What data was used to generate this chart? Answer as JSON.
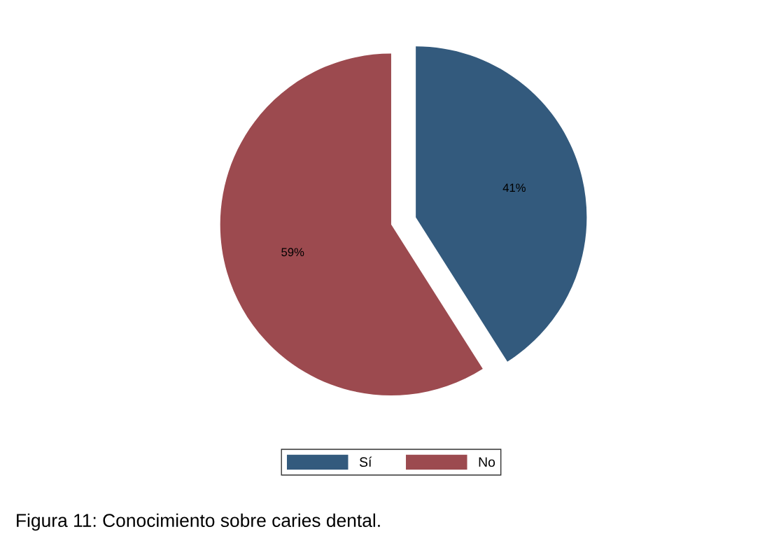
{
  "chart_data": {
    "type": "pie",
    "categories": [
      "Sí",
      "No"
    ],
    "values": [
      41,
      59
    ],
    "colors": [
      "#335a7d",
      "#9c4a4f"
    ],
    "value_labels": [
      "41%",
      "59%"
    ],
    "legend": "bottom",
    "annotations": [
      "Figura 11: Conocimiento sobre caries dental."
    ]
  }
}
